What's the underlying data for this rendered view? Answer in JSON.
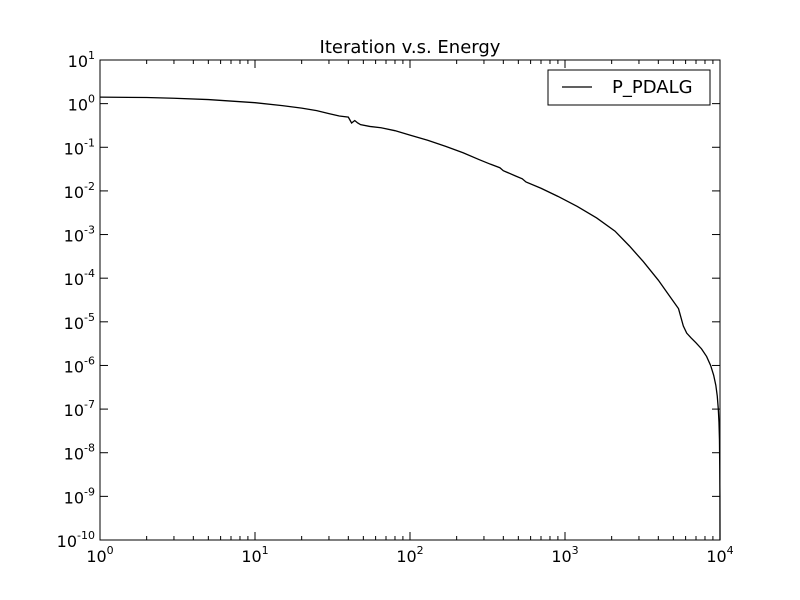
{
  "chart_data": {
    "type": "line",
    "title": "Iteration v.s. Energy",
    "xlabel": "",
    "ylabel": "",
    "x_scale": "log",
    "y_scale": "log",
    "xlim": [
      1,
      10000
    ],
    "ylim": [
      1e-10,
      10
    ],
    "grid": false,
    "legend_position": "top-right",
    "x_ticks": [
      {
        "value": 1,
        "base": "10",
        "exp": "0"
      },
      {
        "value": 10,
        "base": "10",
        "exp": "1"
      },
      {
        "value": 100,
        "base": "10",
        "exp": "2"
      },
      {
        "value": 1000,
        "base": "10",
        "exp": "3"
      },
      {
        "value": 10000,
        "base": "10",
        "exp": "4"
      }
    ],
    "y_ticks": [
      {
        "value": 10,
        "base": "10",
        "exp": "1"
      },
      {
        "value": 1,
        "base": "10",
        "exp": "0"
      },
      {
        "value": 0.1,
        "base": "10",
        "exp": "-1"
      },
      {
        "value": 0.01,
        "base": "10",
        "exp": "-2"
      },
      {
        "value": 0.001,
        "base": "10",
        "exp": "-3"
      },
      {
        "value": 0.0001,
        "base": "10",
        "exp": "-4"
      },
      {
        "value": 1e-05,
        "base": "10",
        "exp": "-5"
      },
      {
        "value": 1e-06,
        "base": "10",
        "exp": "-6"
      },
      {
        "value": 1e-07,
        "base": "10",
        "exp": "-7"
      },
      {
        "value": 1e-08,
        "base": "10",
        "exp": "-8"
      },
      {
        "value": 1e-09,
        "base": "10",
        "exp": "-9"
      },
      {
        "value": 1e-10,
        "base": "10",
        "exp": "-10"
      }
    ],
    "series": [
      {
        "name": "P_PDALG",
        "color": "#000000",
        "x": [
          1,
          2,
          3,
          5,
          10,
          15,
          20,
          25,
          30,
          35,
          40,
          42,
          44,
          46,
          48,
          55,
          65,
          80,
          100,
          130,
          170,
          220,
          280,
          330,
          380,
          400,
          420,
          480,
          530,
          560,
          700,
          900,
          1200,
          1600,
          2100,
          2600,
          3200,
          4000,
          4700,
          5400,
          5800,
          6100,
          6500,
          7000,
          7600,
          8200,
          8700,
          9100,
          9400,
          9600,
          9750,
          9850,
          9920,
          9960,
          9990,
          10000
        ],
        "y": [
          1.41,
          1.38,
          1.33,
          1.24,
          1.05,
          0.9,
          0.79,
          0.69,
          0.59,
          0.52,
          0.49,
          0.36,
          0.41,
          0.36,
          0.33,
          0.3,
          0.28,
          0.24,
          0.19,
          0.145,
          0.105,
          0.075,
          0.052,
          0.041,
          0.034,
          0.029,
          0.027,
          0.022,
          0.019,
          0.016,
          0.0115,
          0.0075,
          0.0044,
          0.0024,
          0.0012,
          0.00055,
          0.00024,
          9e-05,
          4e-05,
          2e-05,
          8e-06,
          5.5e-06,
          4.3e-06,
          3.3e-06,
          2.4e-06,
          1.6e-06,
          1e-06,
          6e-07,
          3.5e-07,
          2e-07,
          1e-07,
          5e-08,
          2e-08,
          5e-09,
          1e-09,
          1e-10
        ]
      }
    ]
  }
}
